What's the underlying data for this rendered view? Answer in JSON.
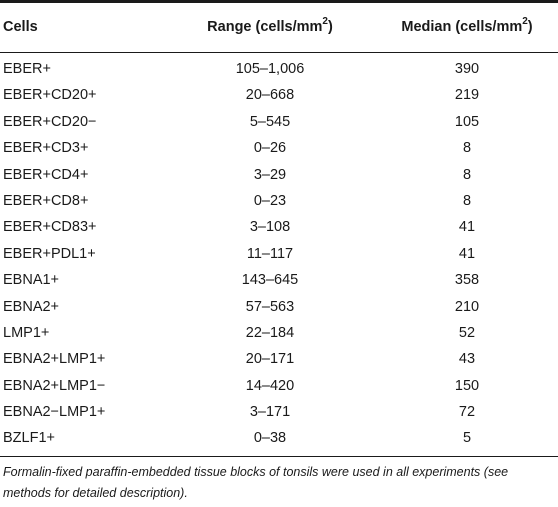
{
  "table": {
    "headers": {
      "cells": "Cells",
      "range_prefix": "Range (cells/mm",
      "range_sup": "2",
      "range_suffix": ")",
      "median_prefix": "Median (cells/mm",
      "median_sup": "2",
      "median_suffix": ")"
    },
    "rows": [
      {
        "cells": "EBER+",
        "range": "105–1,006",
        "median": "390"
      },
      {
        "cells": "EBER+CD20+",
        "range": "20–668",
        "median": "219"
      },
      {
        "cells": "EBER+CD20−",
        "range": "5–545",
        "median": "105"
      },
      {
        "cells": "EBER+CD3+",
        "range": "0–26",
        "median": "8"
      },
      {
        "cells": "EBER+CD4+",
        "range": "3–29",
        "median": "8"
      },
      {
        "cells": "EBER+CD8+",
        "range": "0–23",
        "median": "8"
      },
      {
        "cells": "EBER+CD83+",
        "range": "3–108",
        "median": "41"
      },
      {
        "cells": "EBER+PDL1+",
        "range": "11–117",
        "median": "41"
      },
      {
        "cells": "EBNA1+",
        "range": "143–645",
        "median": "358"
      },
      {
        "cells": "EBNA2+",
        "range": "57–563",
        "median": "210"
      },
      {
        "cells": "LMP1+",
        "range": "22–184",
        "median": "52"
      },
      {
        "cells": "EBNA2+LMP1+",
        "range": "20–171",
        "median": "43"
      },
      {
        "cells": "EBNA2+LMP1−",
        "range": "14–420",
        "median": "150"
      },
      {
        "cells": "EBNA2−LMP1+",
        "range": "3–171",
        "median": "72"
      },
      {
        "cells": "BZLF1+",
        "range": "0–38",
        "median": "5"
      }
    ],
    "footnote": "Formalin-fixed paraffin-embedded tissue blocks of tonsils were used in all experiments (see methods for detailed description)."
  }
}
